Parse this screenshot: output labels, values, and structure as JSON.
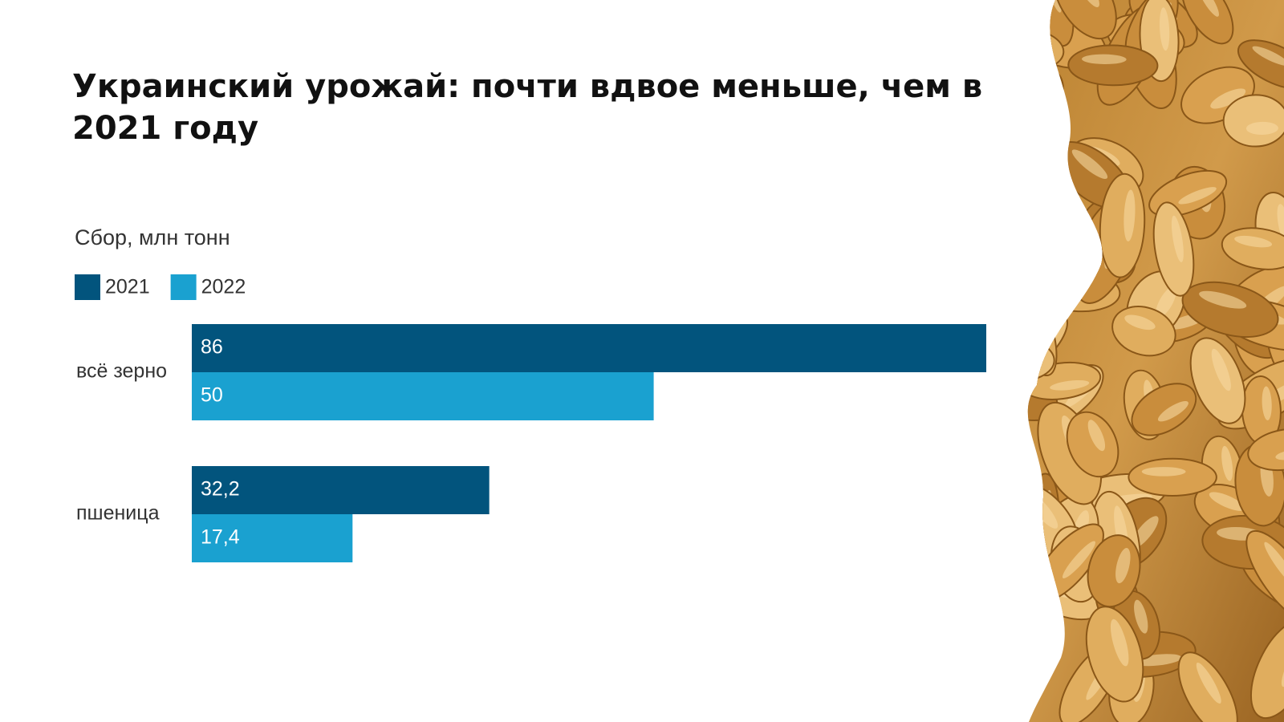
{
  "chart_data": {
    "type": "barh",
    "title": "Украинский урожай: почти вдвое меньше, чем в 2021 году",
    "subtitle": "Сбор, млн тонн",
    "categories": [
      "всё зерно",
      "пшеница"
    ],
    "series": [
      {
        "name": "2021",
        "color": "#02547d",
        "values": [
          86,
          32.2
        ],
        "value_labels": [
          "86",
          "32,2"
        ]
      },
      {
        "name": "2022",
        "color": "#1aa1d0",
        "values": [
          50,
          17.4
        ],
        "value_labels": [
          "50",
          "17,4"
        ]
      }
    ]
  }
}
